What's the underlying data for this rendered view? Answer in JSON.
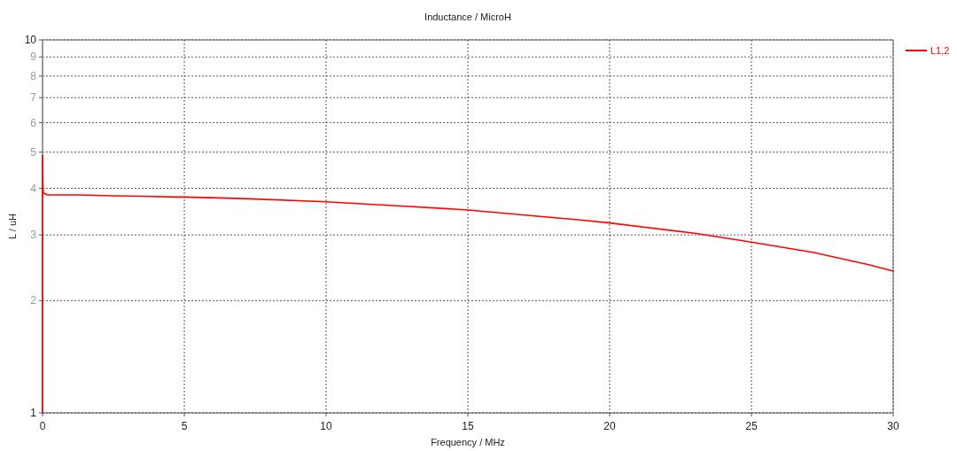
{
  "chart_data": {
    "type": "line",
    "title": "Inductance / MicroH",
    "xlabel": "Frequency / MHz",
    "ylabel": "L / uH",
    "series": [
      {
        "name": "L1,2",
        "color": "#ff0000",
        "x": [
          0,
          0,
          0.01,
          0.02,
          0.04,
          0.17,
          1.3,
          2.5,
          3.5,
          4.75,
          5,
          7.3,
          10,
          12.5,
          15,
          17.8,
          18.8,
          20,
          23,
          25,
          27.2,
          29.2,
          30
        ],
        "values": [
          1,
          4.9,
          4.18,
          3.95,
          3.88,
          3.84,
          3.84,
          3.82,
          3.81,
          3.79,
          3.79,
          3.75,
          3.68,
          3.59,
          3.5,
          3.35,
          3.3,
          3.23,
          3.03,
          2.87,
          2.69,
          2.49,
          2.4
        ]
      }
    ],
    "xlim": [
      0,
      30
    ],
    "xticks": [
      0,
      5,
      10,
      15,
      20,
      25,
      30
    ],
    "ylim": [
      1,
      10
    ],
    "yticks": [
      1,
      2,
      3,
      4,
      5,
      6,
      7,
      8,
      9,
      10
    ],
    "log": true,
    "grid": true,
    "legend": "top right",
    "line_style": "solid"
  }
}
